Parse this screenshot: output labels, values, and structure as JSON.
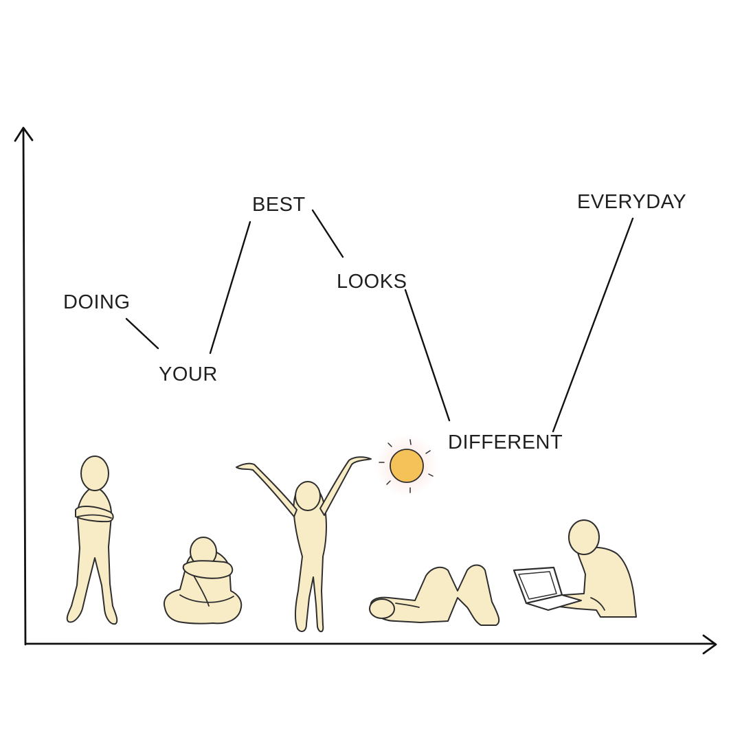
{
  "words": {
    "doing": "DOING",
    "your": "YOUR",
    "best": "BEST",
    "looks": "LOOKS",
    "different": "DIFFERENT",
    "everyday": "EVERYDAY"
  },
  "colors": {
    "ink": "#111111",
    "figure_fill": "#f8ecc7",
    "sun": "#f5c25a"
  },
  "icons": {
    "sun": "sun-icon",
    "laptop": "laptop-icon"
  }
}
